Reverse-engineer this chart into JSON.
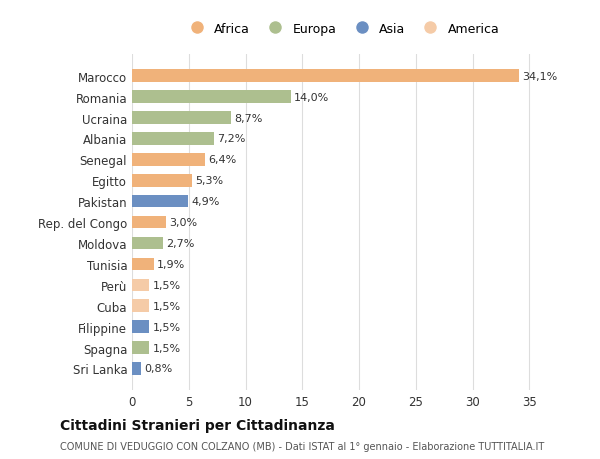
{
  "countries": [
    "Marocco",
    "Romania",
    "Ucraina",
    "Albania",
    "Senegal",
    "Egitto",
    "Pakistan",
    "Rep. del Congo",
    "Moldova",
    "Tunisia",
    "Perù",
    "Cuba",
    "Filippine",
    "Spagna",
    "Sri Lanka"
  ],
  "values": [
    34.1,
    14.0,
    8.7,
    7.2,
    6.4,
    5.3,
    4.9,
    3.0,
    2.7,
    1.9,
    1.5,
    1.5,
    1.5,
    1.5,
    0.8
  ],
  "labels": [
    "34,1%",
    "14,0%",
    "8,7%",
    "7,2%",
    "6,4%",
    "5,3%",
    "4,9%",
    "3,0%",
    "2,7%",
    "1,9%",
    "1,5%",
    "1,5%",
    "1,5%",
    "1,5%",
    "0,8%"
  ],
  "continents": [
    "Africa",
    "Europa",
    "Europa",
    "Europa",
    "Africa",
    "Africa",
    "Asia",
    "Africa",
    "Europa",
    "Africa",
    "America",
    "America",
    "Asia",
    "Europa",
    "Asia"
  ],
  "continent_colors": {
    "Africa": "#F0B27A",
    "Europa": "#ADBF8F",
    "Asia": "#6B8FC2",
    "America": "#F5CBA7"
  },
  "legend_order": [
    "Africa",
    "Europa",
    "Asia",
    "America"
  ],
  "xlim": [
    0,
    37
  ],
  "xticks": [
    0,
    5,
    10,
    15,
    20,
    25,
    30,
    35
  ],
  "title": "Cittadini Stranieri per Cittadinanza",
  "subtitle": "COMUNE DI VEDUGGIO CON COLZANO (MB) - Dati ISTAT al 1° gennaio - Elaborazione TUTTITALIA.IT",
  "bg_color": "#FFFFFF",
  "grid_color": "#DDDDDD",
  "bar_height": 0.6
}
